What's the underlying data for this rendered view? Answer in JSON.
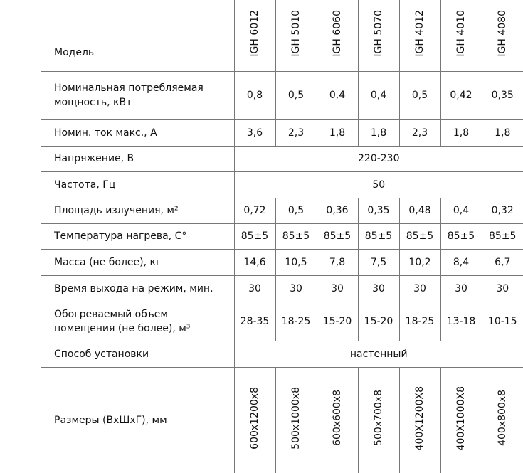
{
  "header": {
    "label": "Модель",
    "models": [
      "IGH 6012",
      "IGH 5010",
      "IGH 6060",
      "IGH 5070",
      "IGH 4012",
      "IGH 4010",
      "IGH 4080"
    ]
  },
  "rows": [
    {
      "label": "Номинальная потребляемая мощность, кВт",
      "values": [
        "0,8",
        "0,5",
        "0,4",
        "0,4",
        "0,5",
        "0,42",
        "0,35"
      ]
    },
    {
      "label": "Номин. ток макс., А",
      "values": [
        "3,6",
        "2,3",
        "1,8",
        "1,8",
        "2,3",
        "1,8",
        "1,8"
      ]
    },
    {
      "label": "Напряжение, В",
      "value": "220-230"
    },
    {
      "label": "Частота, Гц",
      "value": "50"
    },
    {
      "label": "Площадь излучения, м²",
      "values": [
        "0,72",
        "0,5",
        "0,36",
        "0,35",
        "0,48",
        "0,4",
        "0,32"
      ]
    },
    {
      "label": "Температура нагрева, С°",
      "values": [
        "85±5",
        "85±5",
        "85±5",
        "85±5",
        "85±5",
        "85±5",
        "85±5"
      ]
    },
    {
      "label": "Масса (не более), кг",
      "values": [
        "14,6",
        "10,5",
        "7,8",
        "7,5",
        "10,2",
        "8,4",
        "6,7"
      ]
    },
    {
      "label": "Время выхода на режим, мин.",
      "values": [
        "30",
        "30",
        "30",
        "30",
        "30",
        "30",
        "30"
      ]
    },
    {
      "label": "Обогреваемый объем помещения (не более), м³",
      "values": [
        "28-35",
        "18-25",
        "15-20",
        "15-20",
        "18-25",
        "13-18",
        "10-15"
      ]
    },
    {
      "label": "Способ установки",
      "value": "настенный"
    },
    {
      "label": "Размеры (ВхШхГ), мм",
      "values": [
        "600x1200x8",
        "500x1000x8",
        "600x600x8",
        "500x700x8",
        "400X1200X8",
        "400X1000X8",
        "400x800x8"
      ]
    }
  ]
}
